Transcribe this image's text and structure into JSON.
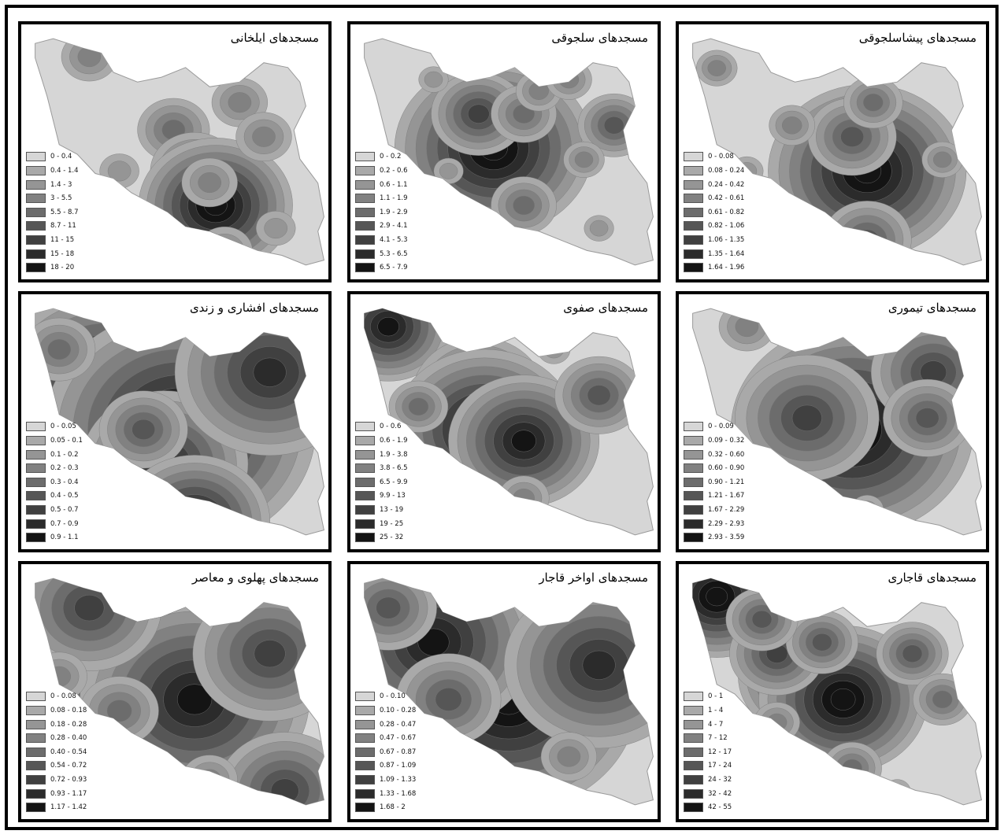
{
  "shade_ramp": [
    "#d6d6d6",
    "#a9a9a9",
    "#959595",
    "#818181",
    "#6c6c6c",
    "#565656",
    "#404040",
    "#2b2b2b",
    "#141414"
  ],
  "panels": [
    {
      "id": "ilkhani",
      "title": "مسجدهای ایلخانی",
      "legend": [
        "0 - 0.4",
        "0.4 - 1.4",
        "1.4 - 3",
        "3 - 5.5",
        "5.5 - 8.7",
        "8.7 - 11",
        "11 - 15",
        "15 - 18",
        "18 - 20"
      ],
      "blobs": [
        [
          0.2,
          0.1,
          1,
          3
        ],
        [
          0.48,
          0.42,
          1,
          4
        ],
        [
          0.55,
          0.6,
          1,
          5
        ],
        [
          0.62,
          0.75,
          1,
          9
        ],
        [
          0.7,
          0.3,
          1,
          3
        ],
        [
          0.78,
          0.45,
          1,
          3
        ],
        [
          0.3,
          0.6,
          1,
          2
        ],
        [
          0.65,
          0.95,
          1,
          3
        ],
        [
          0.82,
          0.85,
          1,
          2
        ],
        [
          0.6,
          0.65,
          1,
          3
        ]
      ]
    },
    {
      "id": "saljuqi",
      "title": "مسجدهای سلجوقی",
      "legend": [
        "0 - 0.2",
        "0.2 - 0.6",
        "0.6 - 1.1",
        "1.1 - 1.9",
        "1.9 - 2.9",
        "2.9 - 4.1",
        "4.1 - 5.3",
        "5.3 - 6.5",
        "6.5 - 7.9"
      ],
      "blobs": [
        [
          0.45,
          0.5,
          1.3,
          9
        ],
        [
          0.4,
          0.35,
          0.9,
          6
        ],
        [
          0.55,
          0.35,
          0.9,
          4
        ],
        [
          0.6,
          0.25,
          0.8,
          3
        ],
        [
          0.7,
          0.2,
          0.8,
          3
        ],
        [
          0.85,
          0.4,
          0.8,
          5
        ],
        [
          0.75,
          0.55,
          0.7,
          3
        ],
        [
          0.55,
          0.75,
          0.9,
          4
        ],
        [
          0.25,
          0.2,
          0.7,
          2
        ],
        [
          0.3,
          0.6,
          0.7,
          2
        ],
        [
          0.65,
          1.15,
          0.7,
          3
        ],
        [
          0.8,
          0.85,
          0.7,
          2
        ]
      ]
    },
    {
      "id": "pishasaljuqi",
      "title": "مسجدهای پیشاسلجوقی",
      "legend": [
        "0 - 0.08",
        "0.08 - 0.24",
        "0.24 - 0.42",
        "0.42 - 0.61",
        "0.61 - 0.82",
        "0.82 - 1.06",
        "1.06 - 1.35",
        "1.35 - 1.64",
        "1.64 - 1.96"
      ],
      "blobs": [
        [
          0.6,
          0.6,
          1.3,
          9
        ],
        [
          0.55,
          0.45,
          1,
          5
        ],
        [
          0.62,
          0.3,
          0.8,
          4
        ],
        [
          0.6,
          0.9,
          1,
          5
        ],
        [
          0.35,
          0.4,
          0.8,
          3
        ],
        [
          0.2,
          0.6,
          0.8,
          2
        ],
        [
          0.85,
          0.55,
          0.7,
          3
        ],
        [
          0.1,
          0.15,
          0.7,
          3
        ],
        [
          0.4,
          0.85,
          0.8,
          3
        ]
      ]
    },
    {
      "id": "afshari",
      "title": "مسجدهای افشاری و زندی",
      "legend": [
        "0 - 0.05",
        "0.05 - 0.1",
        "0.1 - 0.2",
        "0.2 - 0.3",
        "0.3 - 0.4",
        "0.4 - 0.5",
        "0.5 - 0.7",
        "0.7 - 0.9",
        "0.9 - 1.1"
      ],
      "blobs": [
        [
          0.25,
          0.35,
          1.6,
          8
        ],
        [
          0.5,
          0.55,
          1.8,
          9
        ],
        [
          0.45,
          0.7,
          1.4,
          7
        ],
        [
          0.8,
          0.3,
          1.6,
          7
        ],
        [
          0.38,
          0.55,
          1,
          5
        ],
        [
          0.55,
          0.95,
          1.1,
          8
        ],
        [
          0.1,
          0.2,
          1,
          4
        ]
      ]
    },
    {
      "id": "safavi",
      "title": "مسجدهای صفوی",
      "legend": [
        "0 - 0.6",
        "0.6 - 1.9",
        "1.9 - 3.8",
        "3.8 - 6.5",
        "6.5 - 9.9",
        "9.9 - 13",
        "13 - 19",
        "19 - 25",
        "25 - 32"
      ],
      "blobs": [
        [
          0.1,
          0.1,
          0.9,
          8
        ],
        [
          0.4,
          0.4,
          1.1,
          7
        ],
        [
          0.42,
          0.55,
          1.2,
          9
        ],
        [
          0.55,
          0.6,
          1.1,
          8
        ],
        [
          0.8,
          0.4,
          1,
          5
        ],
        [
          0.65,
          0.2,
          0.8,
          2
        ],
        [
          0.2,
          0.45,
          0.8,
          4
        ],
        [
          0.55,
          0.85,
          0.9,
          3
        ],
        [
          0.3,
          0.8,
          0.7,
          3
        ]
      ]
    },
    {
      "id": "teymuri",
      "title": "مسجدهای تیموری",
      "legend": [
        "0 - 0.09",
        "0.09 - 0.32",
        "0.32 - 0.60",
        "0.60 - 0.90",
        "0.90 - 1.21",
        "1.21 - 1.67",
        "1.67 - 2.29",
        "2.29 - 2.93",
        "2.93 - 3.59"
      ],
      "blobs": [
        [
          0.55,
          0.55,
          1.6,
          9
        ],
        [
          0.4,
          0.5,
          1.4,
          6
        ],
        [
          0.82,
          0.3,
          1.2,
          6
        ],
        [
          0.8,
          0.5,
          1,
          5
        ],
        [
          0.2,
          0.1,
          1,
          3
        ],
        [
          0.6,
          0.9,
          0.8,
          2
        ]
      ]
    },
    {
      "id": "pahlavi",
      "title": "مسجدهای پهلوی و معاصر",
      "legend": [
        "0 - 0.08",
        "0.08 - 0.18",
        "0.18 - 0.28",
        "0.28 - 0.40",
        "0.40 - 0.54",
        "0.54 - 0.72",
        "0.72 - 0.93",
        "0.93 - 1.17",
        "1.17 - 1.42"
      ],
      "blobs": [
        [
          0.38,
          0.3,
          2,
          9
        ],
        [
          0.55,
          0.55,
          1.7,
          8
        ],
        [
          0.2,
          0.15,
          1.4,
          6
        ],
        [
          0.8,
          0.35,
          1.5,
          6
        ],
        [
          0.85,
          0.95,
          1.3,
          6
        ],
        [
          0.3,
          0.6,
          1.1,
          4
        ],
        [
          0.6,
          0.9,
          1,
          3
        ],
        [
          0.1,
          0.45,
          1,
          3
        ]
      ]
    },
    {
      "id": "avakhar-qajar",
      "title": "مسجدهای اواخر قاجار",
      "legend": [
        "0 - 0.10",
        "0.10 - 0.28",
        "0.28 - 0.47",
        "0.47 - 0.67",
        "0.67 - 0.87",
        "0.87 - 1.09",
        "1.09 - 1.33",
        "1.33 - 1.68",
        "1.68 - 2"
      ],
      "blobs": [
        [
          0.4,
          0.5,
          1.9,
          9
        ],
        [
          0.5,
          0.55,
          1.7,
          9
        ],
        [
          0.25,
          0.3,
          1.5,
          8
        ],
        [
          0.8,
          0.4,
          1.6,
          7
        ],
        [
          0.3,
          0.55,
          1.2,
          5
        ],
        [
          0.7,
          0.8,
          1,
          3
        ],
        [
          0.35,
          0.95,
          1,
          3
        ],
        [
          0.1,
          0.15,
          1.1,
          5
        ]
      ]
    },
    {
      "id": "qajari",
      "title": "مسجدهای قاجاری",
      "legend": [
        "0 - 1",
        "1 - 4",
        "4 - 7",
        "7 - 12",
        "12 - 17",
        "17 - 24",
        "24 - 32",
        "32 - 42",
        "42 - 55"
      ],
      "blobs": [
        [
          0.1,
          0.1,
          0.9,
          9
        ],
        [
          0.4,
          0.45,
          1,
          8
        ],
        [
          0.52,
          0.55,
          1.1,
          9
        ],
        [
          0.3,
          0.35,
          0.9,
          6
        ],
        [
          0.45,
          0.3,
          0.8,
          5
        ],
        [
          0.25,
          0.2,
          0.8,
          5
        ],
        [
          0.75,
          0.35,
          0.8,
          5
        ],
        [
          0.85,
          0.55,
          0.8,
          4
        ],
        [
          0.55,
          0.85,
          0.8,
          4
        ],
        [
          0.3,
          0.65,
          0.8,
          3
        ],
        [
          0.7,
          0.95,
          0.6,
          2
        ]
      ]
    }
  ]
}
